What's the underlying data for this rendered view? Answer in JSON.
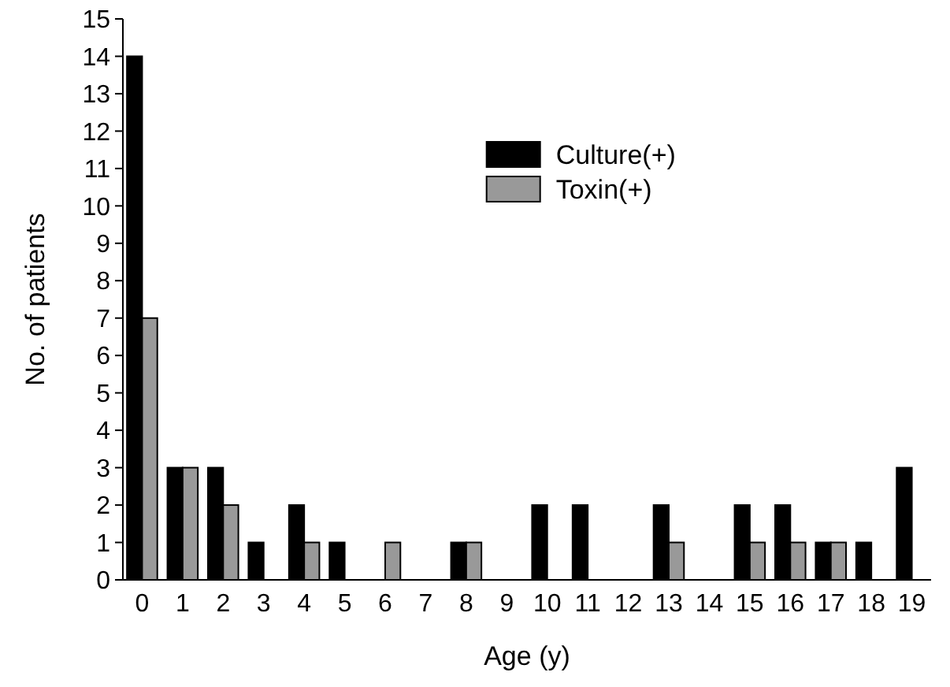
{
  "chart_data": {
    "type": "bar",
    "xlabel": "Age (y)",
    "ylabel": "No. of patients",
    "categories": [
      "0",
      "1",
      "2",
      "3",
      "4",
      "5",
      "6",
      "7",
      "8",
      "9",
      "10",
      "11",
      "12",
      "13",
      "14",
      "15",
      "16",
      "17",
      "18",
      "19"
    ],
    "series": [
      {
        "name": "Culture(+)",
        "color": "#000000",
        "values": [
          14,
          3,
          3,
          1,
          2,
          1,
          0,
          0,
          1,
          0,
          2,
          2,
          0,
          2,
          0,
          2,
          2,
          1,
          1,
          3
        ]
      },
      {
        "name": "Toxin(+)",
        "color": "#999999",
        "values": [
          7,
          3,
          2,
          0,
          1,
          0,
          1,
          0,
          1,
          0,
          0,
          0,
          0,
          1,
          0,
          1,
          1,
          1,
          0,
          0
        ]
      }
    ],
    "ylim": [
      0,
      15
    ],
    "yticks": [
      0,
      1,
      2,
      3,
      4,
      5,
      6,
      7,
      8,
      9,
      10,
      11,
      12,
      13,
      14,
      15
    ],
    "grid": false,
    "legend": "top right"
  }
}
